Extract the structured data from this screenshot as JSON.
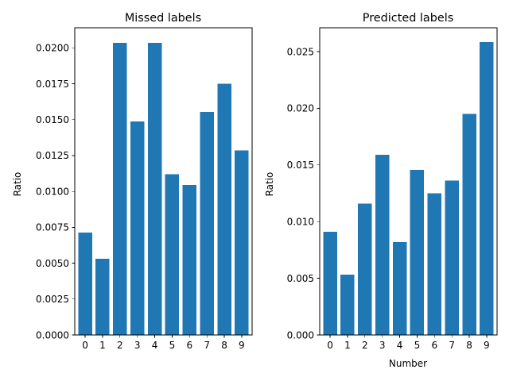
{
  "chart_data": [
    {
      "type": "bar",
      "title": "Missed labels",
      "xlabel": "",
      "ylabel": "Ratio",
      "categories": [
        "0",
        "1",
        "2",
        "3",
        "4",
        "5",
        "6",
        "7",
        "8",
        "9"
      ],
      "values": [
        0.00712,
        0.0053,
        0.02035,
        0.01488,
        0.02035,
        0.01121,
        0.01045,
        0.01553,
        0.01749,
        0.01287
      ],
      "ylim": [
        0,
        0.0214
      ],
      "yticks": [
        "0.0000",
        "0.0025",
        "0.0050",
        "0.0075",
        "0.0100",
        "0.0125",
        "0.0150",
        "0.0175",
        "0.0200"
      ],
      "ytick_values": [
        0,
        0.0025,
        0.005,
        0.0075,
        0.01,
        0.0125,
        0.015,
        0.0175,
        0.02
      ],
      "color": "#1f77b4",
      "grid": false
    },
    {
      "type": "bar",
      "title": "Predicted labels",
      "xlabel": "Number",
      "ylabel": "Ratio",
      "categories": [
        "0",
        "1",
        "2",
        "3",
        "4",
        "5",
        "6",
        "7",
        "8",
        "9"
      ],
      "values": [
        0.00912,
        0.00532,
        0.01159,
        0.01589,
        0.00818,
        0.01456,
        0.01251,
        0.01363,
        0.01951,
        0.02583
      ],
      "ylim": [
        0,
        0.0271
      ],
      "yticks": [
        "0.000",
        "0.005",
        "0.010",
        "0.015",
        "0.020",
        "0.025"
      ],
      "ytick_values": [
        0,
        0.005,
        0.01,
        0.015,
        0.02,
        0.025
      ],
      "color": "#1f77b4",
      "grid": false
    }
  ]
}
